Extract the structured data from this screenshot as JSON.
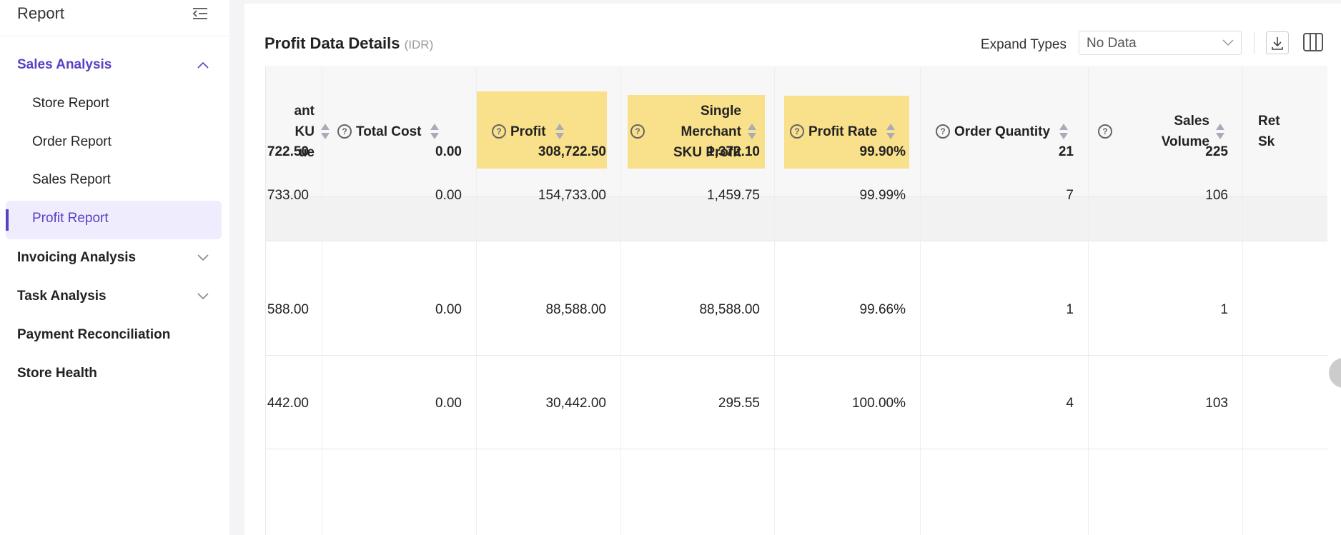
{
  "sidebar": {
    "title": "Report",
    "menu": [
      {
        "label": "Sales Analysis",
        "children": [
          "Store Report",
          "Order Report",
          "Sales Report",
          "Profit Report"
        ]
      },
      {
        "label": "Invoicing Analysis"
      },
      {
        "label": "Task Analysis"
      },
      {
        "label": "Payment Reconciliation"
      },
      {
        "label": "Store Health"
      }
    ]
  },
  "header": {
    "title": "Profit Data Details",
    "currency": "(IDR)",
    "expand_label": "Expand Types",
    "select": "No Data"
  },
  "table": {
    "columns": [
      {
        "lines": [
          "ant",
          "KU",
          "ue"
        ]
      },
      {
        "lines": [
          "Total Cost"
        ]
      },
      {
        "lines": [
          "Profit"
        ]
      },
      {
        "lines": [
          "Single",
          "Merchant",
          "SKU Profit"
        ]
      },
      {
        "lines": [
          "Profit Rate"
        ]
      },
      {
        "lines": [
          "Order Quantity"
        ]
      },
      {
        "lines": [
          "Sales",
          "Volume"
        ]
      },
      {
        "lines": [
          "Ret",
          "Sk"
        ]
      }
    ],
    "rows": [
      [
        "722.50",
        "0.00",
        "308,722.50",
        "1,372.10",
        "99.90%",
        "21",
        "225"
      ],
      [
        "733.00",
        "0.00",
        "154,733.00",
        "1,459.75",
        "99.99%",
        "7",
        "106"
      ],
      [
        "588.00",
        "0.00",
        "88,588.00",
        "88,588.00",
        "99.66%",
        "1",
        "1"
      ],
      [
        "442.00",
        "0.00",
        "30,442.00",
        "295.55",
        "100.00%",
        "4",
        "103"
      ]
    ]
  }
}
